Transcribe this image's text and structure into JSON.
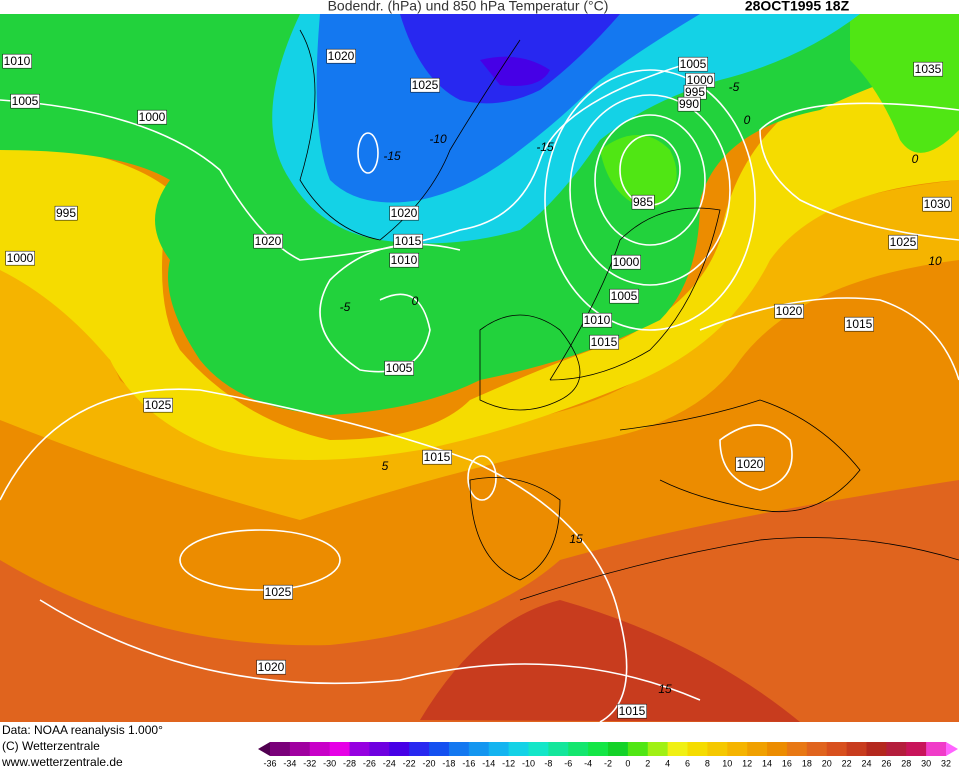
{
  "header": {
    "title": "Bodendr. (hPa) und 850 hPa Temperatur (°C)",
    "date": "28OCT1995 18Z"
  },
  "footer": [
    "Data: NOAA reanalysis 1.000°",
    "(C) Wetterzentrale",
    "www.wetterzentrale.de"
  ],
  "isobar_labels": [
    "1010",
    "1005",
    "1000",
    "1020",
    "1025",
    "995",
    "1000",
    "1020",
    "1020",
    "1015",
    "1010",
    "1005",
    "1000",
    "995",
    "990",
    "985",
    "1000",
    "1005",
    "1010",
    "1015",
    "1005",
    "1025",
    "1015",
    "1020",
    "1015",
    "1020",
    "1025",
    "1020",
    "1015",
    "1030",
    "1025",
    "1035"
  ],
  "isotherm_labels": [
    "-15",
    "-10",
    "-5",
    "0",
    "10",
    "5",
    "15",
    "15",
    "-15",
    "0",
    "-5",
    "0"
  ],
  "legend": {
    "labels": [
      -36,
      -34,
      -32,
      -30,
      -28,
      -26,
      -24,
      -22,
      -20,
      -18,
      -16,
      -14,
      -12,
      -10,
      -8,
      -6,
      -4,
      -2,
      0,
      2,
      4,
      6,
      8,
      10,
      12,
      14,
      16,
      18,
      20,
      22,
      24,
      26,
      28,
      30,
      32
    ],
    "colors": [
      "#500050",
      "#7a007a",
      "#a000a0",
      "#c800c8",
      "#e600e6",
      "#9600e0",
      "#6e00e0",
      "#4600e6",
      "#2828f0",
      "#1450f0",
      "#1478f0",
      "#1496f0",
      "#14b4f0",
      "#14d2e6",
      "#14e6c8",
      "#14e69b",
      "#14e66e",
      "#14e646",
      "#14d228",
      "#50e614",
      "#a0f014",
      "#f0f014",
      "#f5dc00",
      "#f5c800",
      "#f5b400",
      "#f0a000",
      "#ec8c00",
      "#e87814",
      "#e0641e",
      "#d8501e",
      "#c83c1e",
      "#b4281e",
      "#b41e3c",
      "#c8145a",
      "#f03cc8",
      "#ff64ff"
    ]
  }
}
